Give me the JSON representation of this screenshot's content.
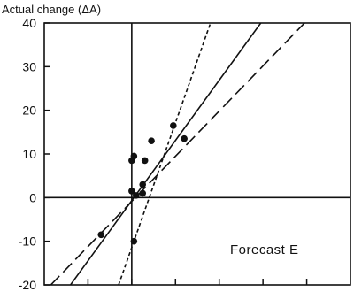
{
  "chart_data": {
    "type": "scatter",
    "title": "",
    "xlabel": "",
    "ylabel": "Actual change (ΔA)",
    "annotation": "Forecast E",
    "xlim": [
      -20,
      50
    ],
    "ylim": [
      -20,
      40
    ],
    "yticks": [
      40,
      30,
      20,
      10,
      0,
      -10,
      -20
    ],
    "ytick_labels": [
      "40",
      "30",
      "20",
      "10",
      "0",
      "-10",
      "-20"
    ],
    "xticks": [
      -10,
      0,
      10,
      20,
      30,
      40
    ],
    "grid": false,
    "points": [
      {
        "x": -7,
        "y": -8.5
      },
      {
        "x": 0,
        "y": 8.5
      },
      {
        "x": 0.5,
        "y": 9.5
      },
      {
        "x": 0,
        "y": 1.5
      },
      {
        "x": 1,
        "y": 0.5
      },
      {
        "x": 0.5,
        "y": -10
      },
      {
        "x": 2.5,
        "y": 1
      },
      {
        "x": 2.5,
        "y": 3
      },
      {
        "x": 3,
        "y": 8.5
      },
      {
        "x": 4.5,
        "y": 13
      },
      {
        "x": 9.5,
        "y": 16.5
      },
      {
        "x": 12,
        "y": 13.5
      }
    ],
    "lines": [
      {
        "style": "dotted",
        "x1": -3,
        "y1": -20,
        "x2": 18,
        "y2": 40
      },
      {
        "style": "solid",
        "x1": -14,
        "y1": -20,
        "x2": 29.5,
        "y2": 40
      },
      {
        "style": "dashed",
        "x1": -18.5,
        "y1": -20,
        "x2": 39.5,
        "y2": 40
      }
    ]
  }
}
